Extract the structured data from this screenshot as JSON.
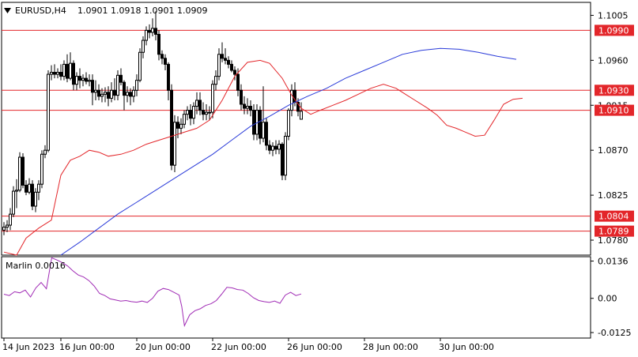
{
  "window": {
    "symbol_label": "EURUSD,H4",
    "ohlc_label": "1.0901 1.0918 1.0901 1.0909",
    "menu_icon": "triangle-down-icon"
  },
  "colors": {
    "candle": "#000000",
    "ma_fast": "#e3262a",
    "ma_slow": "#2a3bd9",
    "level_line": "#e3262a",
    "badge_bg": "#e3262a",
    "indicator": "#a02bb5",
    "frame": "#000000"
  },
  "chart_data": [
    {
      "type": "candlestick",
      "title": "EURUSD,H4",
      "ylim": [
        1.0765,
        1.1018
      ],
      "y_ticks": [
        "1.1005",
        "1.0960",
        "1.0915",
        "1.0870",
        "1.0825",
        "1.0780"
      ],
      "x_tick_labels": [
        "14 Jun 2023",
        "16 Jun 00:00",
        "20 Jun 00:00",
        "22 Jun 00:00",
        "26 Jun 00:00",
        "28 Jun 00:00",
        "30 Jun 00:00"
      ],
      "x_tick_index": [
        0,
        18,
        42,
        66,
        90,
        114,
        138
      ],
      "levels": [
        {
          "value": 1.099,
          "label": "1.0990"
        },
        {
          "value": 1.093,
          "label": "1.0930"
        },
        {
          "value": 1.091,
          "label": "1.0910"
        },
        {
          "value": 1.0804,
          "label": "1.0804"
        },
        {
          "value": 1.0789,
          "label": "1.0789"
        }
      ],
      "candles": [
        [
          1.079,
          1.0798,
          1.0785,
          1.0793
        ],
        [
          1.0793,
          1.08,
          1.0788,
          1.0795
        ],
        [
          1.0795,
          1.0812,
          1.079,
          1.0806
        ],
        [
          1.0806,
          1.0834,
          1.0803,
          1.0829
        ],
        [
          1.0829,
          1.0841,
          1.0812,
          1.083
        ],
        [
          1.083,
          1.0868,
          1.0828,
          1.0863
        ],
        [
          1.0863,
          1.0867,
          1.0832,
          1.0835
        ],
        [
          1.0835,
          1.084,
          1.0825,
          1.0828
        ],
        [
          1.0828,
          1.0842,
          1.0826,
          1.0836
        ],
        [
          1.0836,
          1.084,
          1.081,
          1.0814
        ],
        [
          1.0814,
          1.0832,
          1.0808,
          1.0828
        ],
        [
          1.0828,
          1.084,
          1.082,
          1.0836
        ],
        [
          1.0836,
          1.087,
          1.0832,
          1.0866
        ],
        [
          1.0866,
          1.0875,
          1.0862,
          1.087
        ],
        [
          1.087,
          1.095,
          1.0868,
          1.0946
        ],
        [
          1.0946,
          1.0955,
          1.094,
          1.0948
        ],
        [
          1.0948,
          1.0956,
          1.0942,
          1.0946
        ],
        [
          1.0946,
          1.0952,
          1.0942,
          1.0948
        ],
        [
          1.0948,
          1.0956,
          1.094,
          1.0944
        ],
        [
          1.0944,
          1.096,
          1.094,
          1.0956
        ],
        [
          1.0956,
          1.0966,
          1.0938,
          1.0942
        ],
        [
          1.0942,
          1.0968,
          1.094,
          1.0957
        ],
        [
          1.0957,
          1.096,
          1.093,
          1.0936
        ],
        [
          1.0936,
          1.0948,
          1.093,
          1.0944
        ],
        [
          1.0944,
          1.0952,
          1.0932,
          1.094
        ],
        [
          1.094,
          1.0946,
          1.0934,
          1.0942
        ],
        [
          1.0942,
          1.0948,
          1.0936,
          1.0939
        ],
        [
          1.0939,
          1.0946,
          1.0934,
          1.094
        ],
        [
          1.094,
          1.0946,
          1.0915,
          1.0928
        ],
        [
          1.0928,
          1.094,
          1.092,
          1.093
        ],
        [
          1.093,
          1.0936,
          1.092,
          1.0924
        ],
        [
          1.0924,
          1.0932,
          1.0918,
          1.0926
        ],
        [
          1.0926,
          1.0933,
          1.0918,
          1.0928
        ],
        [
          1.0928,
          1.0934,
          1.0914,
          1.0922
        ],
        [
          1.0922,
          1.0938,
          1.0918,
          1.093
        ],
        [
          1.093,
          1.0942,
          1.092,
          1.0925
        ],
        [
          1.0925,
          1.095,
          1.092,
          1.0945
        ],
        [
          1.0945,
          1.0952,
          1.0935,
          1.0938
        ],
        [
          1.0938,
          1.094,
          1.091,
          1.0925
        ],
        [
          1.0925,
          1.0934,
          1.0918,
          1.0928
        ],
        [
          1.0928,
          1.0932,
          1.0915,
          1.0924
        ],
        [
          1.0924,
          1.0934,
          1.0918,
          1.093
        ],
        [
          1.093,
          1.0946,
          1.0924,
          1.094
        ],
        [
          1.094,
          1.0972,
          1.0938,
          1.0968
        ],
        [
          1.0968,
          1.0984,
          1.0962,
          1.098
        ],
        [
          1.098,
          1.0994,
          1.0975,
          1.099
        ],
        [
          1.099,
          1.0996,
          1.0982,
          1.0988
        ],
        [
          1.0988,
          1.1002,
          1.0984,
          1.0992
        ],
        [
          1.0992,
          1.1009,
          1.098,
          1.0986
        ],
        [
          1.0986,
          1.099,
          1.096,
          1.0966
        ],
        [
          1.0966,
          1.097,
          1.0956,
          1.0962
        ],
        [
          1.0962,
          1.0966,
          1.095,
          1.0956
        ],
        [
          1.0956,
          1.0958,
          1.092,
          1.093
        ],
        [
          1.093,
          1.0936,
          1.085,
          1.0855
        ],
        [
          1.0855,
          1.0905,
          1.0848,
          1.0898
        ],
        [
          1.0898,
          1.0904,
          1.0882,
          1.0892
        ],
        [
          1.0892,
          1.0902,
          1.0886,
          1.0896
        ],
        [
          1.0896,
          1.091,
          1.0892,
          1.0906
        ],
        [
          1.0906,
          1.0914,
          1.09,
          1.091
        ],
        [
          1.091,
          1.0916,
          1.0895,
          1.0902
        ],
        [
          1.0902,
          1.0918,
          1.0896,
          1.0914
        ],
        [
          1.0914,
          1.0928,
          1.0906,
          1.092
        ],
        [
          1.092,
          1.0928,
          1.0905,
          1.091
        ],
        [
          1.091,
          1.0918,
          1.09,
          1.0906
        ],
        [
          1.0906,
          1.0916,
          1.09,
          1.0908
        ],
        [
          1.0908,
          1.0914,
          1.09,
          1.0908
        ],
        [
          1.0908,
          1.094,
          1.0902,
          1.0936
        ],
        [
          1.0936,
          1.095,
          1.093,
          1.0944
        ],
        [
          1.0944,
          1.0972,
          1.094,
          1.0966
        ],
        [
          1.0966,
          1.0978,
          1.0958,
          1.0962
        ],
        [
          1.0962,
          1.0972,
          1.0956,
          1.096
        ],
        [
          1.096,
          1.0964,
          1.0952,
          1.0956
        ],
        [
          1.0956,
          1.096,
          1.0948,
          1.095
        ],
        [
          1.095,
          1.0954,
          1.094,
          1.0946
        ],
        [
          1.0946,
          1.0952,
          1.0924,
          1.093
        ],
        [
          1.093,
          1.0936,
          1.091,
          1.0916
        ],
        [
          1.0916,
          1.0924,
          1.0906,
          1.0912
        ],
        [
          1.0912,
          1.0922,
          1.0906,
          1.0914
        ],
        [
          1.0914,
          1.092,
          1.0904,
          1.091
        ],
        [
          1.091,
          1.0916,
          1.088,
          1.0886
        ],
        [
          1.0886,
          1.0916,
          1.088,
          1.091
        ],
        [
          1.091,
          1.0914,
          1.0876,
          1.0882
        ],
        [
          1.0882,
          1.0934,
          1.0878,
          1.0898
        ],
        [
          1.0898,
          1.0902,
          1.087,
          1.0875
        ],
        [
          1.0875,
          1.088,
          1.0866,
          1.087
        ],
        [
          1.087,
          1.0878,
          1.0864,
          1.0874
        ],
        [
          1.0874,
          1.088,
          1.0866,
          1.0871
        ],
        [
          1.0871,
          1.088,
          1.0866,
          1.0876
        ],
        [
          1.0876,
          1.0878,
          1.084,
          1.0845
        ],
        [
          1.0845,
          1.0888,
          1.084,
          1.0884
        ],
        [
          1.0884,
          1.0912,
          1.088,
          1.091
        ],
        [
          1.091,
          1.0936,
          1.0904,
          1.093
        ],
        [
          1.093,
          1.0938,
          1.0914,
          1.0918
        ],
        [
          1.0918,
          1.0922,
          1.0904,
          1.0909
        ],
        [
          1.0901,
          1.0918,
          1.0901,
          1.0909
        ]
      ],
      "ma_fast": [
        [
          0,
          1.0768
        ],
        [
          4,
          1.0765
        ],
        [
          7,
          1.0782
        ],
        [
          11,
          1.0792
        ],
        [
          15,
          1.08
        ],
        [
          18,
          1.0845
        ],
        [
          21,
          1.086
        ],
        [
          24,
          1.0864
        ],
        [
          27,
          1.087
        ],
        [
          30,
          1.0868
        ],
        [
          33,
          1.0864
        ],
        [
          37,
          1.0866
        ],
        [
          41,
          1.087
        ],
        [
          45,
          1.0876
        ],
        [
          49,
          1.088
        ],
        [
          53,
          1.0884
        ],
        [
          57,
          1.0888
        ],
        [
          61,
          1.0892
        ],
        [
          65,
          1.09
        ],
        [
          69,
          1.092
        ],
        [
          73,
          1.0944
        ],
        [
          77,
          1.0958
        ],
        [
          81,
          1.096
        ],
        [
          84,
          1.0957
        ],
        [
          88,
          1.0942
        ],
        [
          91,
          1.0925
        ],
        [
          94,
          1.0912
        ],
        [
          97,
          1.0906
        ],
        [
          100,
          1.091
        ],
        [
          104,
          1.0915
        ],
        [
          108,
          1.092
        ],
        [
          112,
          1.0926
        ],
        [
          116,
          1.0932
        ],
        [
          120,
          1.0936
        ],
        [
          124,
          1.0932
        ],
        [
          127,
          1.0926
        ],
        [
          130,
          1.092
        ],
        [
          134,
          1.0912
        ],
        [
          137,
          1.0905
        ],
        [
          140,
          1.0895
        ],
        [
          143,
          1.0892
        ],
        [
          146,
          1.0888
        ],
        [
          149,
          1.0884
        ],
        [
          152,
          1.0885
        ],
        [
          155,
          1.09
        ],
        [
          158,
          1.0916
        ],
        [
          161,
          1.0921
        ],
        [
          164,
          1.0922
        ]
      ],
      "ma_slow": [
        [
          18,
          1.0765
        ],
        [
          24,
          1.0778
        ],
        [
          30,
          1.0792
        ],
        [
          36,
          1.0806
        ],
        [
          42,
          1.0818
        ],
        [
          48,
          1.083
        ],
        [
          54,
          1.0842
        ],
        [
          60,
          1.0854
        ],
        [
          66,
          1.0866
        ],
        [
          72,
          1.088
        ],
        [
          78,
          1.0894
        ],
        [
          84,
          1.0904
        ],
        [
          90,
          1.0915
        ],
        [
          96,
          1.0924
        ],
        [
          102,
          1.0932
        ],
        [
          108,
          1.0942
        ],
        [
          114,
          1.095
        ],
        [
          120,
          1.0958
        ],
        [
          126,
          1.0966
        ],
        [
          132,
          1.097
        ],
        [
          138,
          1.0972
        ],
        [
          144,
          1.0971
        ],
        [
          150,
          1.0968
        ],
        [
          156,
          1.0964
        ],
        [
          162,
          1.0961
        ]
      ]
    },
    {
      "type": "line",
      "title": "Marlin 0.0016",
      "ylim": [
        -0.0145,
        0.0152
      ],
      "y_ticks": [
        "0.0136",
        "0.00",
        "-0.0125"
      ],
      "series": [
        {
          "values": [
            [
              0,
              0.0015
            ],
            [
              4,
              0.001
            ],
            [
              8,
              0.0024
            ],
            [
              12,
              0.002
            ],
            [
              16,
              0.003
            ],
            [
              20,
              0.0005
            ],
            [
              24,
              0.0038
            ],
            [
              28,
              0.0058
            ],
            [
              32,
              0.0035
            ],
            [
              36,
              0.0148
            ],
            [
              40,
              0.014
            ],
            [
              44,
              0.013
            ],
            [
              48,
              0.0118
            ],
            [
              52,
              0.01
            ],
            [
              56,
              0.0085
            ],
            [
              60,
              0.0078
            ],
            [
              64,
              0.0065
            ],
            [
              68,
              0.0045
            ],
            [
              72,
              0.0018
            ],
            [
              76,
              0.001
            ],
            [
              80,
              -0.0002
            ],
            [
              84,
              -0.0006
            ],
            [
              88,
              -0.001
            ],
            [
              92,
              -0.0008
            ],
            [
              96,
              -0.0012
            ],
            [
              100,
              -0.0014
            ],
            [
              104,
              -0.001
            ],
            [
              108,
              -0.0015
            ],
            [
              112,
              0.0
            ],
            [
              116,
              0.0026
            ],
            [
              120,
              0.0036
            ],
            [
              124,
              0.0032
            ],
            [
              128,
              0.0022
            ],
            [
              132,
              0.0012
            ],
            [
              134,
              -0.003
            ],
            [
              136,
              -0.01
            ],
            [
              140,
              -0.006
            ],
            [
              144,
              -0.0045
            ],
            [
              148,
              -0.0038
            ],
            [
              152,
              -0.0026
            ],
            [
              156,
              -0.002
            ],
            [
              160,
              -0.0008
            ],
            [
              164,
              0.0015
            ],
            [
              168,
              0.004
            ],
            [
              172,
              0.0038
            ],
            [
              176,
              0.0032
            ],
            [
              180,
              0.003
            ],
            [
              184,
              0.0018
            ],
            [
              188,
              0.0002
            ],
            [
              192,
              -0.0008
            ],
            [
              196,
              -0.0012
            ],
            [
              200,
              -0.0015
            ],
            [
              204,
              -0.001
            ],
            [
              208,
              -0.0018
            ],
            [
              212,
              0.0012
            ],
            [
              216,
              0.0022
            ],
            [
              220,
              0.001
            ],
            [
              224,
              0.0016
            ]
          ]
        }
      ]
    }
  ]
}
